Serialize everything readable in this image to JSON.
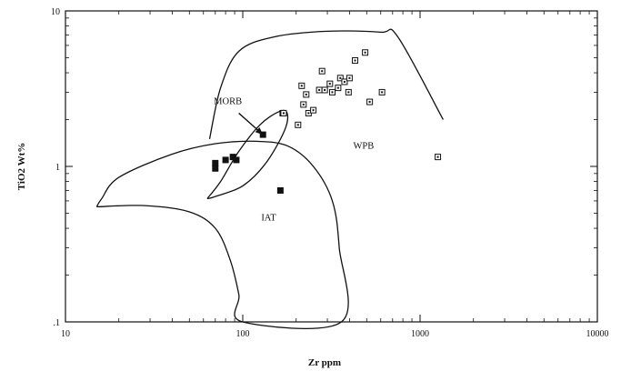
{
  "chart_data": {
    "type": "scatter",
    "title": "",
    "xlabel": "Zr ppm",
    "ylabel": "TiO2 Wt%",
    "xscale": "log",
    "yscale": "log",
    "xlim": [
      10,
      10000
    ],
    "ylim": [
      0.1,
      10
    ],
    "x_ticks": [
      "10",
      "100",
      "1000",
      "10000"
    ],
    "y_ticks": [
      "10",
      "1",
      ".1"
    ],
    "grid": false,
    "legend": "none",
    "regions": [
      {
        "label": "MORB",
        "outline": [
          [
            63,
            0.62
          ],
          [
            75,
            0.8
          ],
          [
            95,
            1.25
          ],
          [
            125,
            1.85
          ],
          [
            160,
            2.25
          ],
          [
            178,
            2.2
          ],
          [
            172,
            1.7
          ],
          [
            135,
            1.05
          ],
          [
            100,
            0.75
          ],
          [
            70,
            0.64
          ],
          [
            63,
            0.62
          ]
        ]
      },
      {
        "label": "IAT",
        "outline": [
          [
            15,
            0.55
          ],
          [
            28,
            0.56
          ],
          [
            50,
            0.51
          ],
          [
            70,
            0.4
          ],
          [
            85,
            0.25
          ],
          [
            95,
            0.15
          ],
          [
            100,
            0.1
          ],
          [
            360,
            0.1
          ],
          [
            350,
            0.3
          ],
          [
            320,
            0.6
          ],
          [
            250,
            1.0
          ],
          [
            180,
            1.35
          ],
          [
            120,
            1.45
          ],
          [
            70,
            1.4
          ],
          [
            40,
            1.2
          ],
          [
            20,
            0.85
          ],
          [
            16,
            0.62
          ],
          [
            15,
            0.55
          ]
        ]
      },
      {
        "label": "WPB",
        "outline": [
          [
            65,
            1.5
          ],
          [
            75,
            3.2
          ],
          [
            95,
            5.5
          ],
          [
            150,
            6.8
          ],
          [
            300,
            7.4
          ],
          [
            600,
            7.3
          ],
          [
            750,
            6.8
          ],
          [
            1350,
            2.0
          ]
        ]
      }
    ],
    "annotations": [
      {
        "text": "MORB",
        "arrow_from": [
          95,
          2.2
        ],
        "arrow_to": [
          130,
          1.6
        ]
      }
    ],
    "series": [
      {
        "marker": "filled-square",
        "points": [
          [
            70,
            1.05
          ],
          [
            70,
            0.97
          ],
          [
            80,
            1.1
          ],
          [
            88,
            1.15
          ],
          [
            92,
            1.1
          ],
          [
            130,
            1.6
          ],
          [
            163,
            0.7
          ],
          [
            168,
            2.2
          ]
        ]
      },
      {
        "marker": "open-square",
        "points": [
          [
            170,
            2.2
          ],
          [
            205,
            1.85
          ],
          [
            215,
            3.3
          ],
          [
            220,
            2.5
          ],
          [
            228,
            2.9
          ],
          [
            235,
            2.2
          ],
          [
            250,
            2.3
          ],
          [
            270,
            3.1
          ],
          [
            280,
            4.1
          ],
          [
            290,
            3.1
          ],
          [
            310,
            3.4
          ],
          [
            320,
            3.0
          ],
          [
            345,
            3.2
          ],
          [
            355,
            3.7
          ],
          [
            375,
            3.5
          ],
          [
            395,
            3.0
          ],
          [
            400,
            3.7
          ],
          [
            430,
            4.8
          ],
          [
            490,
            5.4
          ],
          [
            520,
            2.6
          ],
          [
            610,
            3.0
          ],
          [
            1260,
            1.15
          ]
        ]
      }
    ]
  }
}
